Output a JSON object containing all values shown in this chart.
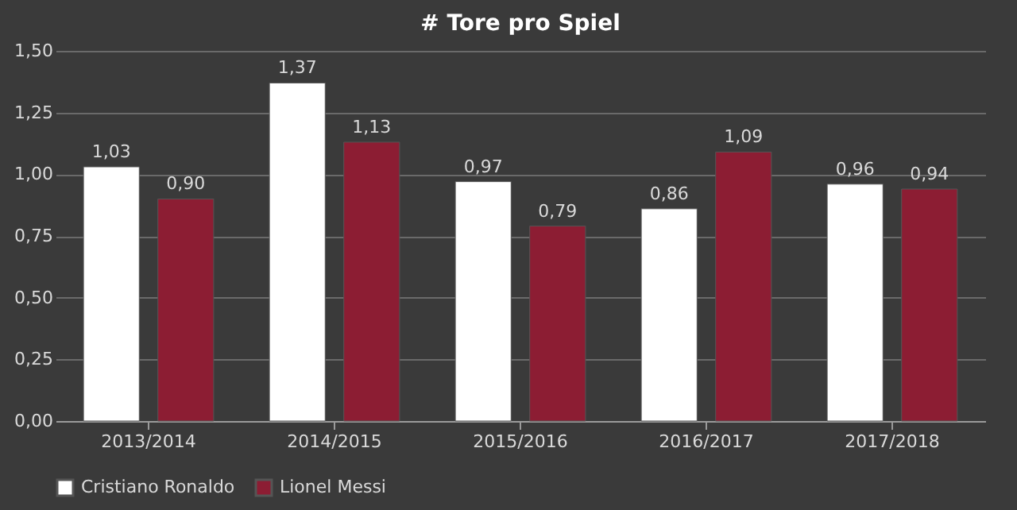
{
  "chart_data": {
    "type": "bar",
    "title": "# Tore pro Spiel",
    "categories": [
      "2013/2014",
      "2014/2015",
      "2015/2016",
      "2016/2017",
      "2017/2018"
    ],
    "series": [
      {
        "name": "Cristiano Ronaldo",
        "color": "#ffffff",
        "values": [
          1.03,
          1.37,
          0.97,
          0.86,
          0.96
        ],
        "value_labels": [
          "1,03",
          "1,37",
          "0,97",
          "0,86",
          "0,96"
        ]
      },
      {
        "name": "Lionel Messi",
        "color": "#8c1d33",
        "values": [
          0.9,
          1.13,
          0.79,
          1.09,
          0.94
        ],
        "value_labels": [
          "0,90",
          "1,13",
          "0,79",
          "1,09",
          "0,94"
        ]
      }
    ],
    "ylim": [
      0,
      1.5
    ],
    "yticks": [
      {
        "value": 0,
        "label": "0,00"
      },
      {
        "value": 0.25,
        "label": "0,25"
      },
      {
        "value": 0.5,
        "label": "0,50"
      },
      {
        "value": 0.75,
        "label": "0,75"
      },
      {
        "value": 1,
        "label": "1,00"
      },
      {
        "value": 1.25,
        "label": "1,25"
      },
      {
        "value": 1.5,
        "label": "1,50"
      }
    ],
    "grid": "y",
    "legend": "bottom"
  }
}
